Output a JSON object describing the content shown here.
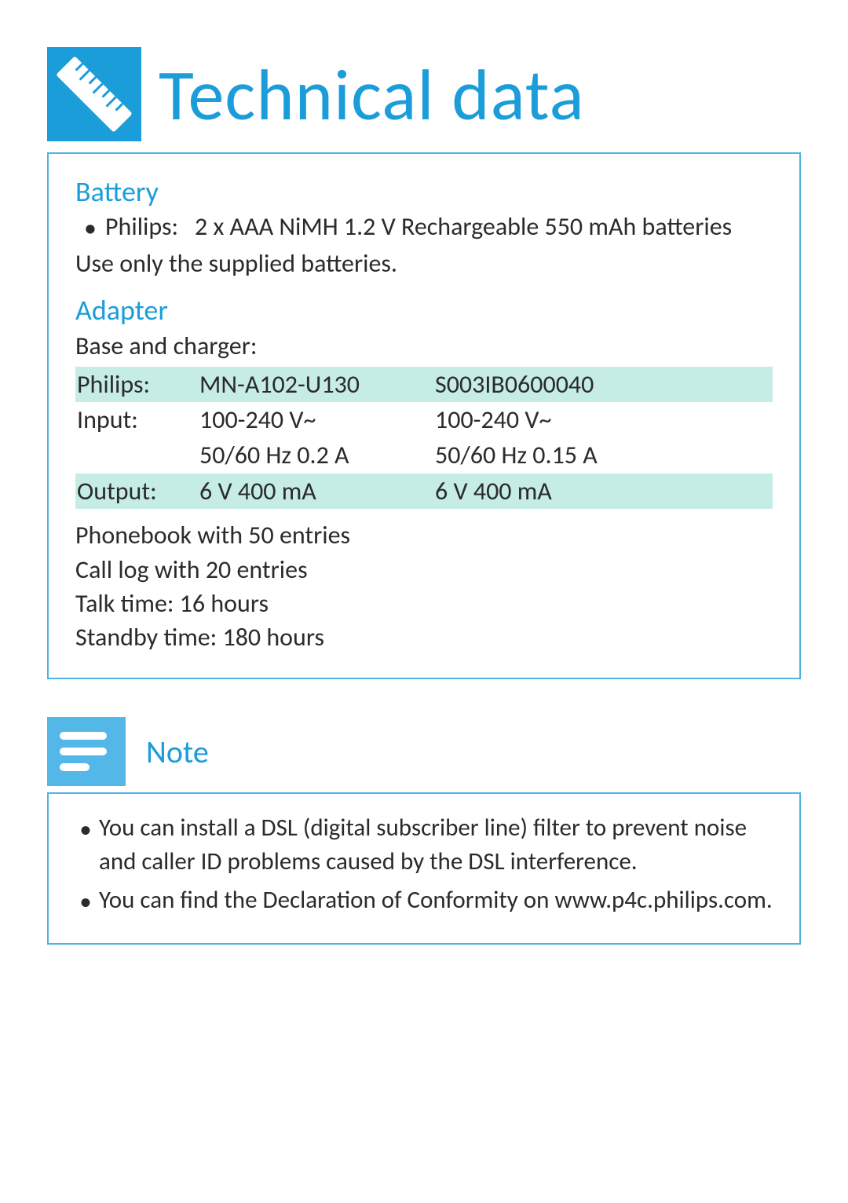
{
  "colors": {
    "accent": "#1b9dd9",
    "icon_bg": "#1b9dd9",
    "note_icon_bg": "#53b7e8",
    "panel_border": "#4fb3e4",
    "text": "#2b2b2b",
    "stripe": "#c6ece6",
    "white": "#ffffff"
  },
  "title": "Technical data",
  "battery": {
    "heading": "Battery",
    "bullet_label": "Philips:",
    "bullet_text": "2 x AAA NiMH 1.2 V Rechargeable 550 mAh batteries",
    "note": "Use only the supplied batteries."
  },
  "adapter": {
    "heading": "Adapter",
    "intro": "Base and charger:",
    "rows": [
      {
        "label": "Philips:",
        "col1": "MN-A102-U130",
        "col2": "S003IB0600040",
        "stripe": true
      },
      {
        "label": "Input:",
        "col1": "100-240 V~",
        "col2": "100-240 V~",
        "stripe": false
      },
      {
        "label": "",
        "col1": "50/60 Hz 0.2 A",
        "col2": "50/60 Hz 0.15 A",
        "stripe": false
      },
      {
        "label": "Output:",
        "col1": "6 V 400 mA",
        "col2": "6 V 400 mA",
        "stripe": true
      }
    ]
  },
  "features": [
    "Phonebook with 50 entries",
    "Call log with 20 entries",
    "Talk time: 16 hours",
    "Standby time: 180 hours"
  ],
  "note": {
    "heading": "Note",
    "items": [
      "You can install a DSL (digital subscriber line) filter to prevent noise and caller ID problems caused by the DSL interference.",
      "You can find the Declaration of Conformity on www.p4c.philips.com."
    ]
  }
}
